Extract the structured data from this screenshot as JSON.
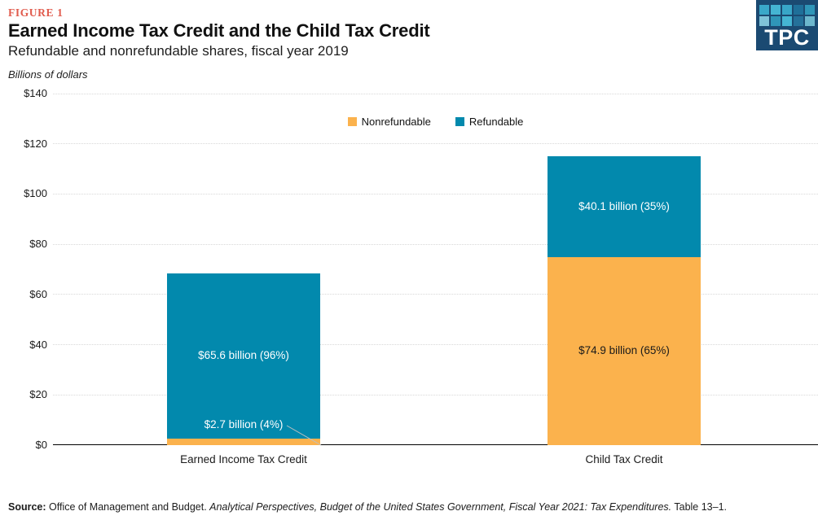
{
  "header": {
    "figure_label": "FIGURE 1",
    "title": "Earned Income Tax Credit and the Child Tax Credit",
    "subtitle": "Refundable and nonrefundable shares, fiscal year 2019"
  },
  "logo": {
    "text": "TPC",
    "bg": "#1b4a72",
    "squares": [
      "#3aa8c9",
      "#45b5d3",
      "#38a6c8",
      "#1f6f99",
      "#2f96b8",
      "#7fc3d8",
      "#2f96b8",
      "#45b5d3",
      "#25719a",
      "#6db7cd"
    ]
  },
  "colors": {
    "refundable": "#0289ad",
    "nonrefundable": "#fbb24d",
    "figure_label": "#e15b4d",
    "grid": "#d8d8d8",
    "axis": "#000000",
    "leader_line": "#c0c0c0"
  },
  "chart_data": {
    "type": "bar",
    "stacked": true,
    "title": "Earned Income Tax Credit and the Child Tax Credit",
    "subtitle": "Refundable and nonrefundable shares, fiscal year 2019",
    "units_label": "Billions of dollars",
    "xlabel": "",
    "ylabel": "Billions of dollars",
    "categories": [
      "Earned Income Tax Credit",
      "Child Tax Credit"
    ],
    "series": [
      {
        "name": "Nonrefundable",
        "color": "#fbb24d",
        "values": [
          2.7,
          74.9
        ],
        "labels": [
          "$2.7 billion (4%)",
          "$74.9 billion (65%)"
        ],
        "label_colors": [
          "#ffffff",
          "#1a1a1a"
        ]
      },
      {
        "name": "Refundable",
        "color": "#0289ad",
        "values": [
          65.6,
          40.1
        ],
        "labels": [
          "$65.6 billion (96%)",
          "$40.1 billion (35%)"
        ],
        "label_colors": [
          "#ffffff",
          "#ffffff"
        ]
      }
    ],
    "ylim": [
      0,
      140
    ],
    "ytick_step": 20,
    "ytick_labels": [
      "$0",
      "$20",
      "$40",
      "$60",
      "$80",
      "$100",
      "$120",
      "$140"
    ],
    "grid": "dotted horizontal",
    "legend_position": "top-center"
  },
  "source": {
    "label": "Source:",
    "plain": " Office of Management and Budget. ",
    "italic": "Analytical Perspectives, Budget of the United States Government, Fiscal Year 2021: Tax Expenditures.",
    "suffix": " Table 13–1."
  }
}
